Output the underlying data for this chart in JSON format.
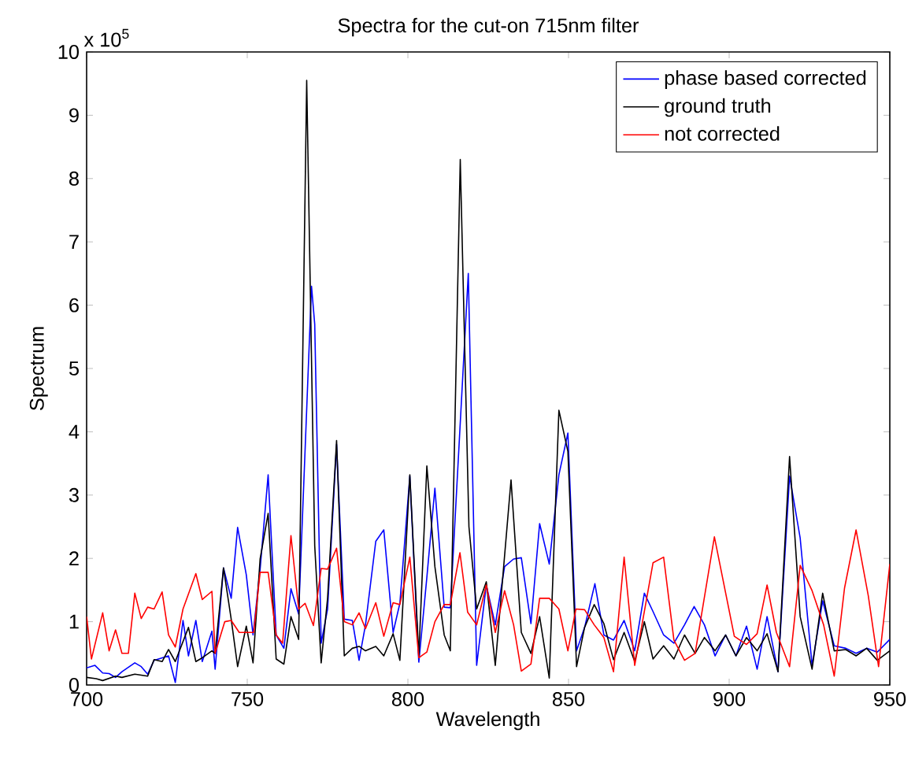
{
  "chart_data": {
    "type": "line",
    "title": "Spectra for the cut-on 715nm filter",
    "xlabel": "Wavelength",
    "ylabel": "Spectrum",
    "annotations": [
      "x 10$^{5}$"
    ],
    "xlim": [
      700,
      950
    ],
    "xticks": [
      700,
      750,
      800,
      850,
      900,
      950
    ],
    "ylim": [
      0,
      10
    ],
    "yticks": [
      0,
      1,
      2,
      3,
      4,
      5,
      6,
      7,
      8,
      9,
      10
    ],
    "legend": "top right",
    "series": [
      {
        "name": "phase based corrected",
        "color": "#0000ff",
        "x": [
          700,
          702.6,
          705,
          707,
          709,
          711,
          715,
          717,
          719,
          721,
          725.5,
          727.6,
          730,
          731.7,
          734,
          736,
          739,
          740,
          742.6,
          745,
          747,
          749.7,
          751.8,
          754,
          756.5,
          759,
          761.4,
          763.6,
          766,
          770,
          771,
          773,
          775,
          777.8,
          780.2,
          782.7,
          784.8,
          786.8,
          790,
          792.5,
          795.4,
          797.5,
          800.6,
          803.4,
          805.9,
          808.4,
          811.3,
          813.2,
          818.8,
          821.4,
          824.4,
          827.2,
          830.1,
          832.9,
          835.3,
          838.3,
          841,
          844,
          847,
          849.8,
          852.5,
          855,
          858.2,
          861,
          864,
          867.3,
          870.6,
          873.6,
          876.3,
          879.6,
          882.8,
          886.1,
          889.1,
          892.3,
          895.6,
          898.9,
          902.1,
          905.4,
          908.7,
          911.8,
          915.2,
          918.8,
          922.1,
          925.8,
          929.1,
          932.7,
          936.3,
          939.5,
          942.8,
          946.1,
          950
        ],
        "values": [
          0.27,
          0.31,
          0.19,
          0.18,
          0.12,
          0.21,
          0.35,
          0.29,
          0.17,
          0.39,
          0.46,
          0.04,
          1.02,
          0.46,
          1.02,
          0.37,
          0.85,
          0.25,
          1.85,
          1.37,
          2.49,
          1.74,
          0.79,
          1.83,
          3.32,
          0.79,
          0.58,
          1.52,
          1.12,
          6.3,
          5.7,
          0.66,
          1.2,
          3.8,
          1.04,
          1.02,
          0.39,
          0.95,
          2.27,
          2.45,
          0.83,
          1.29,
          3.3,
          0.36,
          1.7,
          3.11,
          1.23,
          1.22,
          6.5,
          0.31,
          1.58,
          0.95,
          1.87,
          1.99,
          2.01,
          0.97,
          2.55,
          1.91,
          3.32,
          3.98,
          0.54,
          0.91,
          1.6,
          0.79,
          0.71,
          1.02,
          0.54,
          1.45,
          1.16,
          0.79,
          0.66,
          0.95,
          1.24,
          0.95,
          0.46,
          0.79,
          0.46,
          0.93,
          0.25,
          1.08,
          0.21,
          3.3,
          2.32,
          0.31,
          1.33,
          0.62,
          0.58,
          0.5,
          0.58,
          0.52,
          0.72
        ]
      },
      {
        "name": "ground truth",
        "color": "#000000",
        "x": [
          700,
          703,
          705,
          709,
          711,
          715,
          719,
          721,
          723.5,
          725.5,
          727.6,
          731.7,
          734,
          736,
          739,
          740,
          742.6,
          745,
          747,
          749.7,
          751.8,
          754,
          756.5,
          759,
          761.4,
          763.6,
          766,
          768.5,
          771,
          773,
          775,
          777.8,
          780.2,
          782.7,
          784.8,
          786.8,
          790,
          792.5,
          795.4,
          797.5,
          800.6,
          803.4,
          805.9,
          808.4,
          811.3,
          813.2,
          816.3,
          819,
          821.4,
          824.4,
          827.2,
          832.1,
          835.3,
          838.3,
          841,
          844,
          847,
          849.8,
          852.5,
          855,
          858,
          861,
          864,
          867.3,
          870.6,
          873.6,
          876.3,
          879.6,
          882.8,
          886.1,
          889.4,
          892.3,
          895.6,
          898.9,
          902.1,
          905.4,
          908.7,
          911.8,
          915.2,
          918.8,
          922.1,
          925.8,
          929.1,
          932.7,
          936.3,
          939.5,
          942.8,
          946.1,
          950
        ],
        "values": [
          0.12,
          0.1,
          0.07,
          0.14,
          0.12,
          0.17,
          0.14,
          0.4,
          0.37,
          0.56,
          0.37,
          0.91,
          0.37,
          0.43,
          0.54,
          0.5,
          1.85,
          1.04,
          0.29,
          0.93,
          0.35,
          1.99,
          2.71,
          0.41,
          0.33,
          1.08,
          0.72,
          9.55,
          2.2,
          0.35,
          1.37,
          3.86,
          0.46,
          0.58,
          0.61,
          0.54,
          0.61,
          0.46,
          0.81,
          0.39,
          3.32,
          0.46,
          3.46,
          1.87,
          0.79,
          0.54,
          8.3,
          2.5,
          1.2,
          1.63,
          0.31,
          3.24,
          0.83,
          0.5,
          1.08,
          0.11,
          4.34,
          3.69,
          0.29,
          0.91,
          1.27,
          0.97,
          0.4,
          0.83,
          0.37,
          1.0,
          0.41,
          0.62,
          0.41,
          0.79,
          0.5,
          0.75,
          0.54,
          0.79,
          0.46,
          0.75,
          0.54,
          0.81,
          0.21,
          3.61,
          1.08,
          0.25,
          1.45,
          0.54,
          0.56,
          0.46,
          0.58,
          0.39,
          0.54
        ]
      },
      {
        "name": "not corrected",
        "color": "#ff0000",
        "x": [
          700,
          701.5,
          705,
          707,
          709,
          711,
          713,
          715,
          717,
          719,
          721,
          723.5,
          725.5,
          727.6,
          730,
          734,
          736,
          739,
          740,
          743,
          745,
          747.5,
          752,
          754,
          756.5,
          759,
          761,
          763.6,
          766,
          768,
          770.6,
          773,
          775,
          777.8,
          780.2,
          782.7,
          784.8,
          786.8,
          790,
          792.5,
          795.4,
          797.5,
          800.6,
          803.4,
          805.9,
          808.4,
          811.3,
          813.2,
          816.2,
          818.6,
          821.4,
          824.4,
          827.2,
          830.1,
          832.9,
          835.3,
          838.3,
          841,
          844,
          847,
          849.8,
          852.3,
          855,
          858,
          861,
          864,
          867.3,
          870.6,
          876.3,
          879.6,
          882.8,
          886.1,
          889.4,
          895.4,
          901.6,
          905.4,
          908.7,
          911.8,
          914.7,
          918.8,
          922.1,
          925.8,
          929.4,
          932.7,
          935.9,
          939.5,
          943.3,
          946.5,
          950
        ],
        "values": [
          1.08,
          0.41,
          1.14,
          0.54,
          0.87,
          0.5,
          0.5,
          1.45,
          1.05,
          1.23,
          1.2,
          1.47,
          0.79,
          0.6,
          1.2,
          1.76,
          1.35,
          1.48,
          0.5,
          1.0,
          1.02,
          0.83,
          0.83,
          1.78,
          1.78,
          0.79,
          0.66,
          2.36,
          1.2,
          1.29,
          0.94,
          1.84,
          1.83,
          2.16,
          1.0,
          0.95,
          1.14,
          0.89,
          1.3,
          0.77,
          1.3,
          1.27,
          2.02,
          0.43,
          0.52,
          1.0,
          1.27,
          1.27,
          2.09,
          1.15,
          0.95,
          1.58,
          0.83,
          1.49,
          0.95,
          0.22,
          0.33,
          1.37,
          1.37,
          1.2,
          0.54,
          1.2,
          1.19,
          0.95,
          0.75,
          0.21,
          2.02,
          0.31,
          1.93,
          2.02,
          0.71,
          0.39,
          0.5,
          2.34,
          0.77,
          0.64,
          0.81,
          1.58,
          0.83,
          0.29,
          1.89,
          1.49,
          0.95,
          0.14,
          1.53,
          2.45,
          1.41,
          0.29,
          1.91
        ]
      }
    ]
  }
}
